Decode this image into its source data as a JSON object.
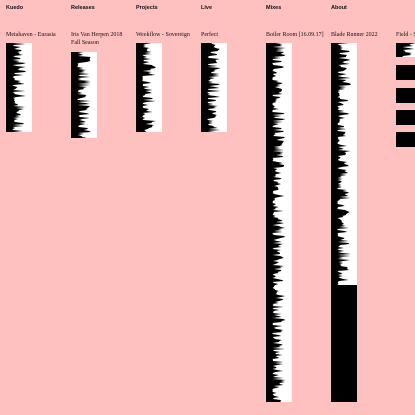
{
  "nav": [
    "Kuedo",
    "Releases",
    "Projects",
    "Live",
    "Mixes",
    "About"
  ],
  "items": [
    "Metahaven - Eurasia",
    "Iris Van Herpen 2018 Fall Season",
    "Weekflow - Sovereign",
    "Perfect",
    "Boiler Room [16.09.17]",
    "Blade Runner 2022",
    "Field - Solo"
  ]
}
